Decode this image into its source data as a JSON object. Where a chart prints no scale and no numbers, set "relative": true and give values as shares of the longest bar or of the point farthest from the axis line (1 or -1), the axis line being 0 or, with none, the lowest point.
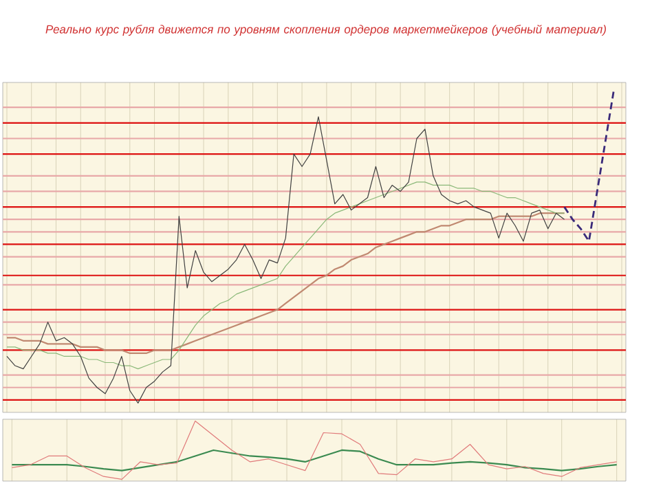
{
  "chart_data": [
    {
      "type": "line",
      "title": "Реально курс рубля движется по уровням скопления ордеров маркетмейкеров (учебный материал)",
      "relative": true,
      "grid": "x",
      "marker": "none",
      "tick_labels": false,
      "categories": [
        null,
        null,
        null,
        null,
        null,
        null,
        null,
        null,
        null,
        null,
        null,
        null,
        null,
        null,
        null,
        null,
        null,
        null,
        null,
        null,
        null,
        null,
        null,
        null,
        null,
        null,
        null,
        null,
        null,
        null,
        null,
        null,
        null,
        null,
        null,
        null,
        null,
        null,
        null,
        null,
        null,
        null,
        null,
        null,
        null,
        null,
        null,
        null,
        null,
        null,
        null,
        null,
        null,
        null,
        null,
        null,
        null,
        null,
        null,
        null,
        null,
        null,
        null,
        null,
        null,
        null,
        null,
        null,
        null,
        null,
        null,
        null,
        null,
        null,
        null,
        null
      ],
      "series": [
        {
          "color": "#c08870",
          "line_style": "solid",
          "values": [
            0.21,
            0.21,
            0.2,
            0.2,
            0.2,
            0.19,
            0.19,
            0.19,
            0.19,
            0.18,
            0.18,
            0.18,
            0.17,
            0.17,
            0.17,
            0.16,
            0.16,
            0.16,
            0.17,
            0.17,
            0.17,
            0.18,
            0.19,
            0.2,
            0.21,
            0.22,
            0.23,
            0.24,
            0.25,
            0.26,
            0.27,
            0.28,
            0.29,
            0.3,
            0.32,
            0.34,
            0.36,
            0.38,
            0.4,
            0.41,
            0.43,
            0.44,
            0.46,
            0.47,
            0.48,
            0.5,
            0.51,
            0.52,
            0.53,
            0.54,
            0.55,
            0.55,
            0.56,
            0.57,
            0.57,
            0.58,
            0.59,
            0.59,
            0.59,
            0.59,
            0.6,
            0.6,
            0.6,
            0.6,
            0.6,
            0.61,
            0.61,
            0.61,
            0.61,
            null,
            null,
            null,
            null,
            null,
            null,
            null
          ]
        },
        {
          "color": "#8ab878",
          "line_style": "solid",
          "values": [
            0.18,
            0.18,
            0.17,
            0.17,
            0.17,
            0.16,
            0.16,
            0.15,
            0.15,
            0.15,
            0.14,
            0.14,
            0.13,
            0.13,
            0.12,
            0.12,
            0.11,
            0.12,
            0.13,
            0.14,
            0.14,
            0.17,
            0.21,
            0.25,
            0.28,
            0.3,
            0.32,
            0.33,
            0.35,
            0.36,
            0.37,
            0.38,
            0.39,
            0.4,
            0.44,
            0.47,
            0.5,
            0.53,
            0.56,
            0.59,
            0.61,
            0.62,
            0.63,
            0.64,
            0.65,
            0.66,
            0.67,
            0.68,
            0.69,
            0.7,
            0.71,
            0.71,
            0.7,
            0.7,
            0.7,
            0.69,
            0.69,
            0.69,
            0.68,
            0.68,
            0.67,
            0.66,
            0.66,
            0.65,
            0.64,
            0.63,
            0.62,
            0.61,
            0.61,
            null,
            null,
            null,
            null,
            null,
            null,
            null
          ]
        },
        {
          "color": "#404040",
          "line_style": "solid",
          "values": [
            0.15,
            0.12,
            0.11,
            0.15,
            0.19,
            0.26,
            0.2,
            0.21,
            0.19,
            0.15,
            0.08,
            0.05,
            0.03,
            0.08,
            0.15,
            0.04,
            0,
            0.05,
            0.07,
            0.1,
            0.12,
            0.6,
            0.37,
            0.49,
            0.42,
            0.39,
            0.41,
            0.43,
            0.46,
            0.51,
            0.46,
            0.4,
            0.46,
            0.45,
            0.53,
            0.8,
            0.76,
            0.8,
            0.92,
            0.78,
            0.64,
            0.67,
            0.62,
            0.64,
            0.66,
            0.76,
            0.66,
            0.7,
            0.68,
            0.71,
            0.85,
            0.88,
            0.73,
            0.67,
            0.65,
            0.64,
            0.65,
            0.63,
            0.62,
            0.61,
            0.53,
            0.61,
            0.57,
            0.52,
            0.61,
            0.62,
            0.56,
            0.61,
            0.59,
            null,
            null,
            null,
            null,
            null,
            null,
            null
          ]
        },
        {
          "color": "#3a2a7a",
          "line_style": "dashed",
          "values": [
            null,
            null,
            null,
            null,
            null,
            null,
            null,
            null,
            null,
            null,
            null,
            null,
            null,
            null,
            null,
            null,
            null,
            null,
            null,
            null,
            null,
            null,
            null,
            null,
            null,
            null,
            null,
            null,
            null,
            null,
            null,
            null,
            null,
            null,
            null,
            null,
            null,
            null,
            null,
            null,
            null,
            null,
            null,
            null,
            null,
            null,
            null,
            null,
            null,
            null,
            null,
            null,
            null,
            null,
            null,
            null,
            null,
            null,
            null,
            null,
            null,
            null,
            null,
            null,
            null,
            null,
            null,
            null,
            0.63,
            0.59,
            0.56,
            0.52,
            0.68,
            0.84,
            1.0,
            null
          ]
        }
      ],
      "ref_lines": [
        {
          "axis": "y",
          "value": 0.95,
          "color": "#e8a8a8"
        },
        {
          "axis": "y",
          "value": 0.9,
          "color": "#dd1111"
        },
        {
          "axis": "y",
          "value": 0.85,
          "color": "#e8a8a8"
        },
        {
          "axis": "y",
          "value": 0.8,
          "color": "#dd1111"
        },
        {
          "axis": "y",
          "value": 0.73,
          "color": "#e8a8a8"
        },
        {
          "axis": "y",
          "value": 0.68,
          "color": "#e8a8a8"
        },
        {
          "axis": "y",
          "value": 0.63,
          "color": "#dd1111"
        },
        {
          "axis": "y",
          "value": 0.59,
          "color": "#e8a8a8"
        },
        {
          "axis": "y",
          "value": 0.55,
          "color": "#e8a8a8"
        },
        {
          "axis": "y",
          "value": 0.51,
          "color": "#dd1111"
        },
        {
          "axis": "y",
          "value": 0.47,
          "color": "#e8a8a8"
        },
        {
          "axis": "y",
          "value": 0.41,
          "color": "#dd1111"
        },
        {
          "axis": "y",
          "value": 0.38,
          "color": "#e8a8a8"
        },
        {
          "axis": "y",
          "value": 0.3,
          "color": "#dd1111"
        },
        {
          "axis": "y",
          "value": 0.26,
          "color": "#e8a8a8"
        },
        {
          "axis": "y",
          "value": 0.22,
          "color": "#e8a8a8"
        },
        {
          "axis": "y",
          "value": 0.17,
          "color": "#dd1111"
        },
        {
          "axis": "y",
          "value": 0.09,
          "color": "#e8a8a8"
        },
        {
          "axis": "y",
          "value": 0.05,
          "color": "#e8a8a8"
        },
        {
          "axis": "y",
          "value": 0.01,
          "color": "#dd1111"
        }
      ]
    },
    {
      "type": "line",
      "relative": true,
      "grid": "x",
      "marker": "none",
      "tick_labels": false,
      "categories": [
        null,
        null,
        null,
        null,
        null,
        null,
        null,
        null,
        null,
        null,
        null,
        null,
        null,
        null,
        null,
        null,
        null,
        null,
        null,
        null,
        null,
        null,
        null,
        null,
        null,
        null,
        null,
        null,
        null,
        null,
        null,
        null,
        null,
        null
      ],
      "series": [
        {
          "color": "#3a8a50",
          "line_style": "solid",
          "values": [
            0.25,
            0.25,
            0.25,
            0.25,
            0.22,
            0.18,
            0.15,
            0.2,
            0.25,
            0.3,
            0.4,
            0.5,
            0.45,
            0.4,
            0.38,
            0.35,
            0.3,
            0.4,
            0.5,
            0.48,
            0.35,
            0.25,
            0.25,
            0.25,
            0.28,
            0.3,
            0.28,
            0.25,
            0.2,
            0.18,
            0.15,
            0.18,
            0.22,
            0.25
          ]
        },
        {
          "color": "#e07a7a",
          "line_style": "solid",
          "values": [
            0.2,
            0.25,
            0.4,
            0.4,
            0.2,
            0.05,
            0,
            0.3,
            0.25,
            0.28,
            1,
            0.75,
            0.5,
            0.3,
            0.35,
            0.25,
            0.15,
            0.8,
            0.78,
            0.6,
            0.1,
            0.08,
            0.35,
            0.3,
            0.35,
            0.6,
            0.25,
            0.18,
            0.22,
            0.1,
            0.05,
            0.2,
            0.25,
            0.3
          ]
        }
      ]
    }
  ]
}
